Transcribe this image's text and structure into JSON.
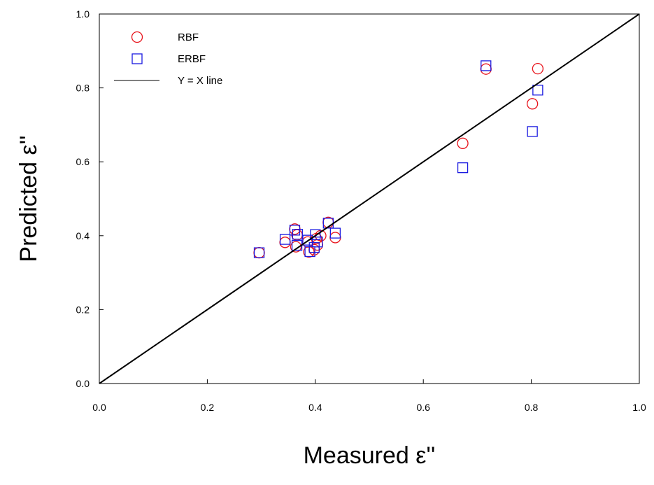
{
  "chart_data": {
    "type": "scatter",
    "title": "",
    "xlabel": "Measured ε''",
    "ylabel": "Predicted ε''",
    "xlim": [
      0.0,
      1.0
    ],
    "ylim": [
      0.0,
      1.0
    ],
    "xticks": [
      "0.0",
      "0.2",
      "0.4",
      "0.6",
      "0.8",
      "1.0"
    ],
    "yticks": [
      "0.0",
      "0.2",
      "0.4",
      "0.6",
      "0.8",
      "1.0"
    ],
    "grid": false,
    "legend_position": "top-left",
    "series": [
      {
        "name": "RBF",
        "marker": "circle",
        "color": "#e8141c",
        "points": [
          [
            0.296,
            0.354
          ],
          [
            0.344,
            0.382
          ],
          [
            0.362,
            0.418
          ],
          [
            0.364,
            0.37
          ],
          [
            0.366,
            0.402
          ],
          [
            0.386,
            0.383
          ],
          [
            0.388,
            0.356
          ],
          [
            0.398,
            0.362
          ],
          [
            0.402,
            0.392
          ],
          [
            0.404,
            0.375
          ],
          [
            0.41,
            0.4
          ],
          [
            0.424,
            0.436
          ],
          [
            0.437,
            0.395
          ],
          [
            0.673,
            0.65
          ],
          [
            0.716,
            0.851
          ],
          [
            0.802,
            0.757
          ],
          [
            0.812,
            0.852
          ]
        ]
      },
      {
        "name": "ERBF",
        "marker": "square",
        "color": "#1a1ae0",
        "points": [
          [
            0.296,
            0.354
          ],
          [
            0.344,
            0.39
          ],
          [
            0.362,
            0.415
          ],
          [
            0.366,
            0.374
          ],
          [
            0.367,
            0.404
          ],
          [
            0.386,
            0.388
          ],
          [
            0.39,
            0.357
          ],
          [
            0.398,
            0.368
          ],
          [
            0.4,
            0.403
          ],
          [
            0.404,
            0.383
          ],
          [
            0.424,
            0.434
          ],
          [
            0.437,
            0.407
          ],
          [
            0.673,
            0.584
          ],
          [
            0.716,
            0.86
          ],
          [
            0.802,
            0.682
          ],
          [
            0.812,
            0.794
          ]
        ]
      },
      {
        "name": "Y = X line",
        "marker": "line",
        "color": "#000000",
        "points": [
          [
            0.0,
            0.0
          ],
          [
            1.0,
            1.0
          ]
        ]
      }
    ]
  }
}
